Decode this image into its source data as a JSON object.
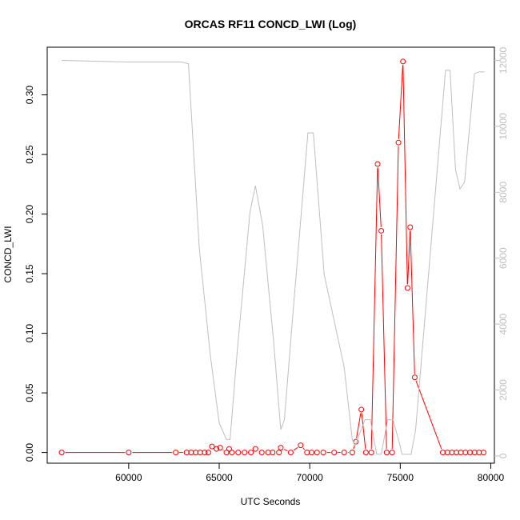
{
  "chart_data": {
    "type": "line",
    "title": "ORCAS RF11 CONCD_LWI (Log)",
    "xlabel": "UTC Seconds",
    "ylabel": "CONCD_LWI",
    "xlim": [
      55500,
      80200
    ],
    "ylim": [
      -0.009,
      0.34
    ],
    "y2lim": [
      -220,
      12400
    ],
    "x_ticks": [
      60000,
      65000,
      70000,
      75000,
      80000
    ],
    "y_ticks": [
      0.0,
      0.05,
      0.1,
      0.15,
      0.2,
      0.25,
      0.3
    ],
    "y2_ticks": [
      0,
      2000,
      4000,
      6000,
      8000,
      10000,
      12000
    ],
    "grid": false,
    "series": [
      {
        "color": "#ff0000",
        "axis": "left",
        "style": "line-points",
        "points": [
          [
            56300,
            0.0
          ],
          [
            60000,
            0.0
          ],
          [
            62600,
            0.0
          ],
          [
            63200,
            0.0
          ],
          [
            63450,
            0.0
          ],
          [
            63700,
            0.0
          ],
          [
            63950,
            0.0
          ],
          [
            64200,
            0.0
          ],
          [
            64400,
            0.0
          ],
          [
            64600,
            0.005
          ],
          [
            64850,
            0.003
          ],
          [
            65050,
            0.004
          ],
          [
            65400,
            0.0
          ],
          [
            65550,
            0.003
          ],
          [
            65700,
            0.0
          ],
          [
            66050,
            0.0
          ],
          [
            66400,
            0.0
          ],
          [
            66750,
            0.0
          ],
          [
            67000,
            0.003
          ],
          [
            67350,
            0.0
          ],
          [
            67700,
            0.0
          ],
          [
            67950,
            0.0
          ],
          [
            68300,
            0.0
          ],
          [
            68400,
            0.004
          ],
          [
            68950,
            0.0
          ],
          [
            69500,
            0.006
          ],
          [
            69850,
            0.0
          ],
          [
            70100,
            0.0
          ],
          [
            70400,
            0.0
          ],
          [
            70750,
            0.0
          ],
          [
            71350,
            0.0
          ],
          [
            71900,
            0.0
          ],
          [
            72350,
            0.0
          ],
          [
            72550,
            0.009
          ],
          [
            72850,
            0.036
          ],
          [
            73100,
            0.0
          ],
          [
            73400,
            0.0
          ],
          [
            73750,
            0.242
          ],
          [
            73950,
            0.186
          ],
          [
            74250,
            0.0
          ],
          [
            74550,
            0.0
          ],
          [
            74900,
            0.26
          ],
          [
            75150,
            0.328
          ],
          [
            75400,
            0.138
          ],
          [
            75550,
            0.189
          ],
          [
            75800,
            0.063
          ],
          [
            77350,
            0.0
          ],
          [
            77600,
            0.0
          ],
          [
            77850,
            0.0
          ],
          [
            78100,
            0.0
          ],
          [
            78350,
            0.0
          ],
          [
            78600,
            0.0
          ],
          [
            78850,
            0.0
          ],
          [
            79100,
            0.0
          ],
          [
            79350,
            0.0
          ],
          [
            79600,
            0.0
          ]
        ]
      },
      {
        "color": "#bebebe",
        "axis": "right",
        "style": "line",
        "points": [
          [
            56300,
            12000
          ],
          [
            60000,
            11950
          ],
          [
            62900,
            11950
          ],
          [
            63300,
            11900
          ],
          [
            63900,
            6300
          ],
          [
            64500,
            3100
          ],
          [
            65000,
            1000
          ],
          [
            65400,
            500
          ],
          [
            65600,
            500
          ],
          [
            66000,
            3200
          ],
          [
            66700,
            7400
          ],
          [
            67000,
            8200
          ],
          [
            67400,
            7000
          ],
          [
            68000,
            3500
          ],
          [
            68400,
            800
          ],
          [
            68600,
            1100
          ],
          [
            69100,
            4500
          ],
          [
            69900,
            9800
          ],
          [
            70200,
            9800
          ],
          [
            70800,
            5500
          ],
          [
            71900,
            2700
          ],
          [
            72350,
            500
          ],
          [
            72500,
            300
          ],
          [
            73050,
            1100
          ],
          [
            73350,
            1100
          ],
          [
            73700,
            50
          ],
          [
            73950,
            50
          ],
          [
            74300,
            1100
          ],
          [
            74600,
            1100
          ],
          [
            74950,
            400
          ],
          [
            75100,
            50
          ],
          [
            75600,
            50
          ],
          [
            75850,
            800
          ],
          [
            77500,
            11700
          ],
          [
            77750,
            11700
          ],
          [
            78050,
            8700
          ],
          [
            78300,
            8100
          ],
          [
            78550,
            8300
          ],
          [
            79100,
            11600
          ],
          [
            79350,
            11650
          ],
          [
            79650,
            11650
          ]
        ]
      }
    ]
  }
}
